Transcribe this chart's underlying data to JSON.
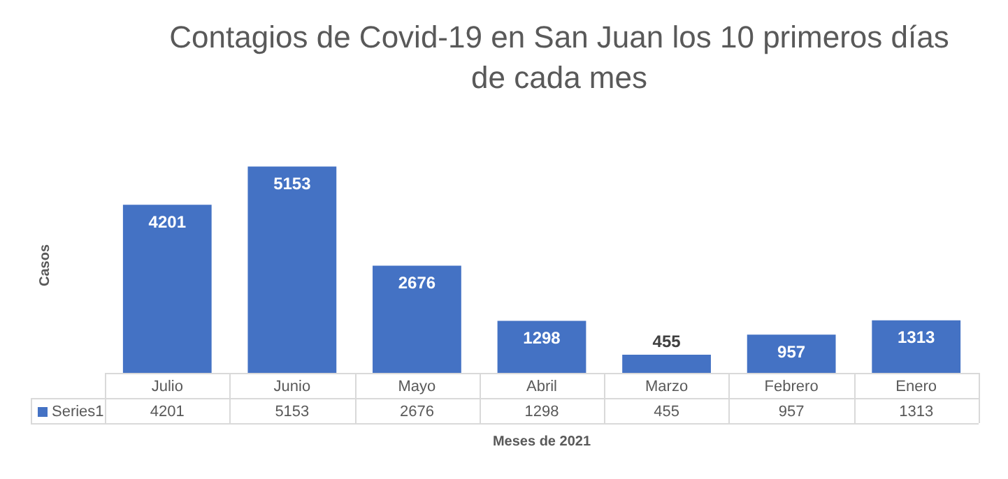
{
  "chart_data": {
    "type": "bar",
    "title": "Contagios de Covid-19 en San Juan los 10 primeros días de cada mes",
    "xlabel": "Meses de 2021",
    "ylabel": "Casos",
    "categories": [
      "Julio",
      "Junio",
      "Mayo",
      "Abril",
      "Marzo",
      "Febrero",
      "Enero"
    ],
    "series": [
      {
        "name": "Series1",
        "color": "#4472c4",
        "values": [
          4201,
          5153,
          2676,
          1298,
          455,
          957,
          1313
        ],
        "value_labels": [
          "4201",
          "5153",
          "2676",
          "1298",
          "455",
          "957",
          "1313"
        ]
      }
    ],
    "annotations": [
      "4201",
      "5153",
      "2676",
      "1298",
      "455",
      "957",
      "1313"
    ],
    "legend": "bottom",
    "grid": false
  }
}
